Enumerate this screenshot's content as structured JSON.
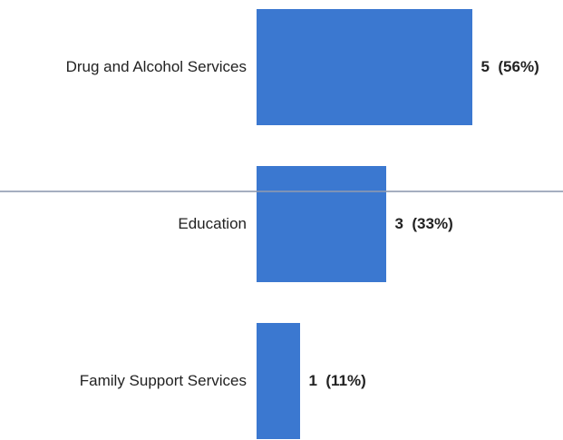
{
  "chart_data": {
    "type": "bar",
    "orientation": "horizontal",
    "categories": [
      "Drug and Alcohol Services",
      "Education",
      "Family Support Services"
    ],
    "values": [
      5,
      3,
      1
    ],
    "value_labels": [
      "5  (56%)",
      "3  (33%)",
      "1  (11%)"
    ],
    "color": "#3b78d0"
  }
}
